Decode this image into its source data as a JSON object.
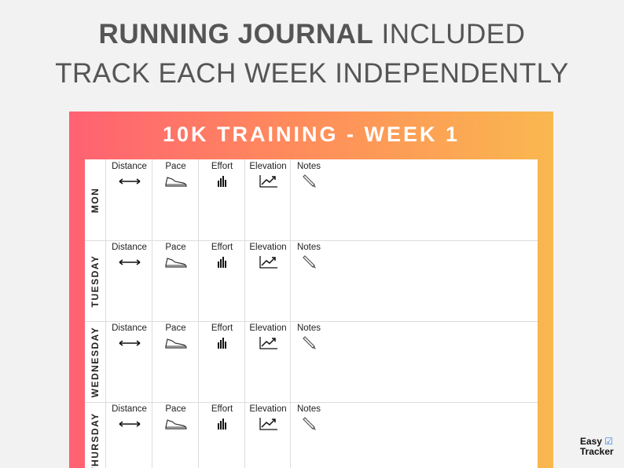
{
  "header": {
    "title_bold": "RUNNING JOURNAL",
    "title_rest": "INCLUDED",
    "subtitle": "TRACK EACH WEEK INDEPENDENTLY"
  },
  "journal": {
    "title": "10K TRAINING - WEEK 1",
    "columns": [
      "Distance",
      "Pace",
      "Effort",
      "Elevation",
      "Notes"
    ],
    "days": [
      "MON",
      "TUESDAY",
      "WEDNESDAY",
      "THURSDAY"
    ]
  },
  "logo": [
    "Easy",
    "Tracker"
  ]
}
